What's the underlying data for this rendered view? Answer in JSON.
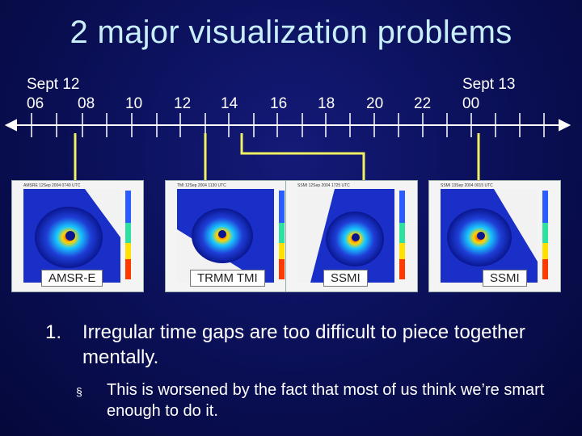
{
  "slide": {
    "title": "2 major visualization problems"
  },
  "timeline": {
    "date_start": "Sept 12",
    "date_end": "Sept 13",
    "hours": [
      "06",
      "08",
      "10",
      "12",
      "14",
      "16",
      "18",
      "20",
      "22",
      "00"
    ],
    "accent_color": "#f0f060"
  },
  "panels": [
    {
      "sensor": "AMSR-E",
      "header": "AMSRE  12Sep 2004 0740 UTC"
    },
    {
      "sensor": "TRMM TMI",
      "header": "TMI  12Sep 2004 1130 UTC"
    },
    {
      "sensor": "SSMI",
      "header": "SSMI  12Sep 2004 1725 UTC"
    },
    {
      "sensor": "SSMI",
      "header": "SSMI  13Sep 2004 0015 UTC"
    }
  ],
  "points": [
    {
      "number": "1.",
      "text": "Irregular time gaps are too difficult to piece together mentally.",
      "sub": [
        {
          "marker": "§",
          "text": "This is worsened by the fact that most of us think we’re smart enough to do it."
        }
      ]
    }
  ]
}
